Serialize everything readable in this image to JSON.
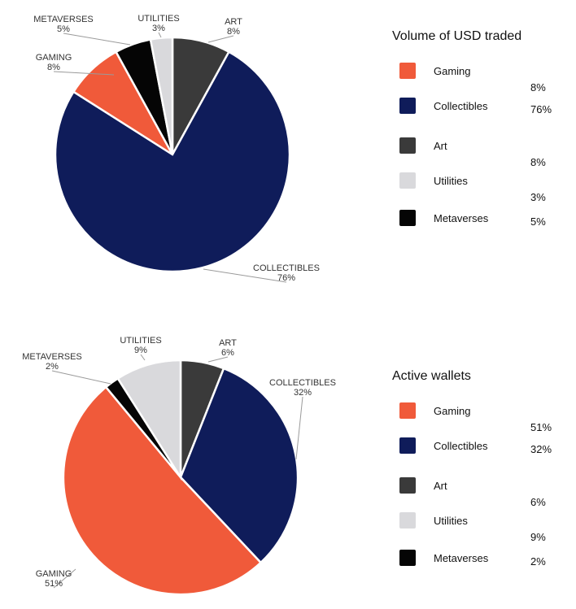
{
  "chart_data": [
    {
      "type": "pie",
      "title": "Volume of USD traded",
      "legend_position": "right",
      "categories": [
        "Gaming",
        "Collectibles",
        "Art",
        "Utilities",
        "Metaverses"
      ],
      "values": [
        8,
        76,
        8,
        3,
        5
      ],
      "value_labels": [
        "8%",
        "76%",
        "8%",
        "3%",
        "5%"
      ],
      "slice_labels": [
        "GAMING",
        "COLLECTIBLES",
        "ART",
        "UTILITIES",
        "METAVERSES"
      ],
      "colors": [
        "#f05a3a",
        "#0f1c5a",
        "#3a3a3a",
        "#d9d9dc",
        "#050505"
      ]
    },
    {
      "type": "pie",
      "title": "Active wallets",
      "legend_position": "right",
      "categories": [
        "Gaming",
        "Collectibles",
        "Art",
        "Utilities",
        "Metaverses"
      ],
      "values": [
        51,
        32,
        6,
        9,
        2
      ],
      "value_labels": [
        "51%",
        "32%",
        "6%",
        "9%",
        "2%"
      ],
      "slice_labels": [
        "GAMING",
        "COLLECTIBLES",
        "ART",
        "UTILITIES",
        "METAVERSES"
      ],
      "colors": [
        "#f05a3a",
        "#0f1c5a",
        "#3a3a3a",
        "#d9d9dc",
        "#050505"
      ]
    }
  ]
}
